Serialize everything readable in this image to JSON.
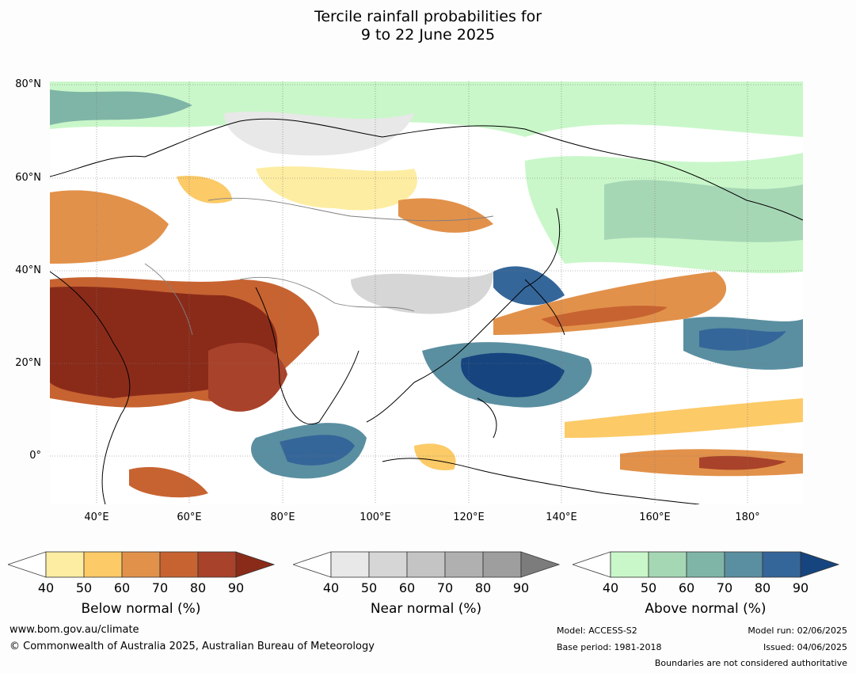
{
  "title_line1": "Tercile rainfall probabilities for",
  "title_line2": "9 to 22 June 2025",
  "lat_labels": [
    "80°N",
    "60°N",
    "40°N",
    "20°N",
    "0°"
  ],
  "lon_labels": [
    "40°E",
    "60°E",
    "80°E",
    "100°E",
    "120°E",
    "140°E",
    "160°E",
    "180°"
  ],
  "colorbars": [
    {
      "label": "Below normal (%)",
      "ticks": [
        "40",
        "50",
        "60",
        "70",
        "80",
        "90"
      ],
      "colors": [
        "#fdeda2",
        "#fcca67",
        "#e2914a",
        "#c76331",
        "#a9422a",
        "#8a2b1a"
      ]
    },
    {
      "label": "Near normal (%)",
      "ticks": [
        "40",
        "50",
        "60",
        "70",
        "80",
        "90"
      ],
      "colors": [
        "#e8e8e8",
        "#d6d6d6",
        "#c4c4c4",
        "#b0b0b0",
        "#9e9e9e",
        "#7c7c7c"
      ]
    },
    {
      "label": "Above normal (%)",
      "ticks": [
        "40",
        "50",
        "60",
        "70",
        "80",
        "90"
      ],
      "colors": [
        "#c9f7c9",
        "#a6d7b5",
        "#7fb5a7",
        "#5a8fa1",
        "#35669a",
        "#16447f"
      ]
    }
  ],
  "footer": {
    "url": "www.bom.gov.au/climate",
    "copyright": "© Commonwealth of Australia 2025, Australian Bureau of Meteorology",
    "model": "Model: ACCESS-S2",
    "base_period": "Base period: 1981-2018",
    "model_run": "Model run: 02/06/2025",
    "issued": "Issued: 04/06/2025",
    "disclaimer": "Boundaries are not considered authoritative"
  }
}
